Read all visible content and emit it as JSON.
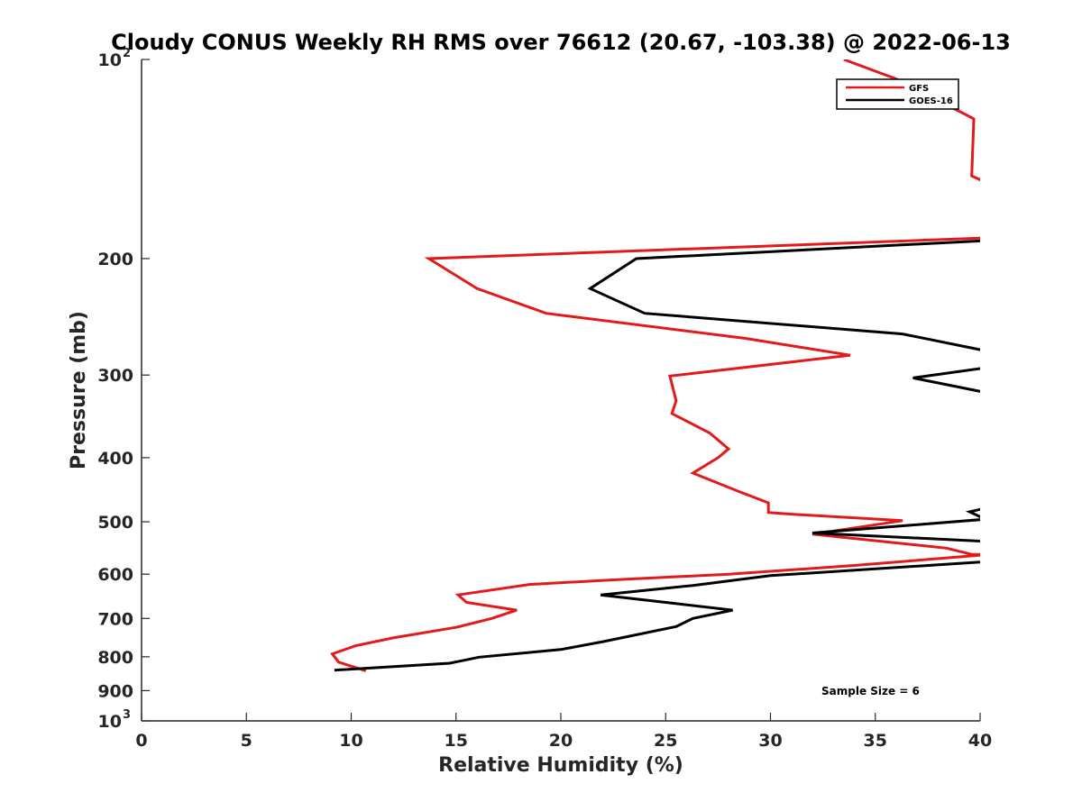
{
  "chart_data": {
    "type": "line",
    "orientation": "vertical-profile",
    "title": "Cloudy CONUS Weekly RH RMS over 76612 (20.67, -103.38) @ 2022-06-13",
    "xlabel": "Relative Humidity (%)",
    "ylabel": "Pressure (mb)",
    "xlim": [
      0,
      40
    ],
    "ylim": [
      100,
      1000
    ],
    "yscale": "log",
    "yreversed": true,
    "legend_position": "top-right",
    "x_ticks": [
      "0",
      "5",
      "10",
      "15",
      "20",
      "25",
      "30",
      "35",
      "40"
    ],
    "y_ticks": [
      {
        "value": 100,
        "base": "10",
        "sup": "2"
      },
      {
        "value": 200,
        "label": "200"
      },
      {
        "value": 300,
        "label": "300"
      },
      {
        "value": 400,
        "label": "400"
      },
      {
        "value": 500,
        "label": "500"
      },
      {
        "value": 600,
        "label": "600"
      },
      {
        "value": 700,
        "label": "700"
      },
      {
        "value": 800,
        "label": "800"
      },
      {
        "value": 900,
        "label": "900"
      },
      {
        "value": 1000,
        "base": "10",
        "sup": "3"
      }
    ],
    "annotation": "Sample Size = 6",
    "series": [
      {
        "name": "GFS",
        "color": "#e31a1c",
        "points": [
          [
            33.5,
            100
          ],
          [
            36.0,
            107
          ],
          [
            39.5,
            122
          ],
          [
            39.7,
            123
          ],
          [
            39.6,
            150
          ],
          [
            40.6,
            155
          ],
          [
            40.5,
            186
          ],
          [
            13.7,
            200
          ],
          [
            16.0,
            222
          ],
          [
            19.3,
            242
          ],
          [
            28.8,
            264
          ],
          [
            33.8,
            280
          ],
          [
            25.2,
            301
          ],
          [
            25.5,
            328
          ],
          [
            25.3,
            343
          ],
          [
            27.1,
            367
          ],
          [
            28.0,
            388
          ],
          [
            27.5,
            400
          ],
          [
            26.3,
            422
          ],
          [
            28.5,
            450
          ],
          [
            29.9,
            468
          ],
          [
            29.9,
            484
          ],
          [
            31.0,
            487
          ],
          [
            36.3,
            498
          ],
          [
            32.0,
            522
          ],
          [
            38.4,
            548
          ],
          [
            39.6,
            560
          ],
          [
            40.5,
            560
          ],
          [
            34.0,
            582
          ],
          [
            28.0,
            600
          ],
          [
            22.5,
            612
          ],
          [
            18.5,
            622
          ],
          [
            15.1,
            645
          ],
          [
            15.5,
            662
          ],
          [
            17.9,
            680
          ],
          [
            16.7,
            700
          ],
          [
            15.0,
            722
          ],
          [
            12.0,
            749
          ],
          [
            10.2,
            770
          ],
          [
            9.1,
            792
          ],
          [
            9.4,
            815
          ],
          [
            10.7,
            840
          ]
        ]
      },
      {
        "name": "GOES-16",
        "color": "#000000",
        "points": [
          [
            40.1,
            188
          ],
          [
            23.6,
            200
          ],
          [
            21.4,
            222
          ],
          [
            24.0,
            242
          ],
          [
            36.3,
            260
          ],
          [
            40.1,
            275
          ],
          [
            40.1,
            293
          ],
          [
            36.8,
            303
          ],
          [
            40.1,
            318
          ],
          null,
          [
            40.1,
            478
          ],
          [
            39.5,
            483
          ],
          [
            40.1,
            493
          ],
          [
            40.1,
            496
          ],
          [
            32.0,
            520
          ],
          [
            40.1,
            535
          ],
          null,
          [
            40.1,
            575
          ],
          [
            30.0,
            603
          ],
          [
            26.3,
            624
          ],
          [
            21.9,
            645
          ],
          [
            25.0,
            662
          ],
          [
            28.2,
            680
          ],
          [
            26.3,
            700
          ],
          [
            25.5,
            720
          ],
          [
            22.0,
            759
          ],
          [
            20.0,
            780
          ],
          [
            16.1,
            801
          ],
          [
            14.7,
            818
          ],
          [
            9.2,
            838
          ]
        ]
      }
    ]
  }
}
